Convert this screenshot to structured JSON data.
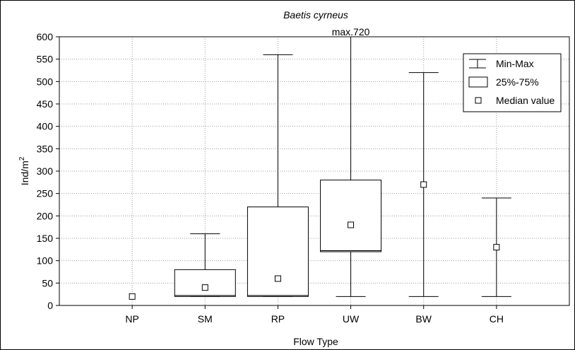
{
  "chart_data": {
    "type": "box",
    "title": "Baetis cyrneus",
    "xlabel": "Flow Type",
    "ylabel": "Ind/m",
    "ylabel_superscript": "2",
    "ylim": [
      0,
      600
    ],
    "yticks": [
      0,
      50,
      100,
      150,
      200,
      250,
      300,
      350,
      400,
      450,
      500,
      550,
      600
    ],
    "grid": true,
    "legend_position": "top-right",
    "categories": [
      "NP",
      "SM",
      "RP",
      "UW",
      "BW",
      "CH"
    ],
    "series": [
      {
        "min": [
          20,
          20,
          20,
          20,
          20,
          20
        ],
        "q1": [
          20,
          20,
          20,
          120,
          20,
          20
        ],
        "median": [
          20,
          40,
          60,
          180,
          270,
          130
        ],
        "q3": [
          20,
          80,
          220,
          280,
          20,
          20
        ],
        "max": [
          20,
          160,
          560,
          720,
          520,
          240
        ]
      }
    ],
    "legend": [
      {
        "symbol": "whisker",
        "label": "Min-Max"
      },
      {
        "symbol": "box",
        "label": "25%-75%"
      },
      {
        "symbol": "median",
        "label": "Median value"
      }
    ],
    "annotations": [
      {
        "category": "UW",
        "text": "max.720"
      }
    ]
  }
}
